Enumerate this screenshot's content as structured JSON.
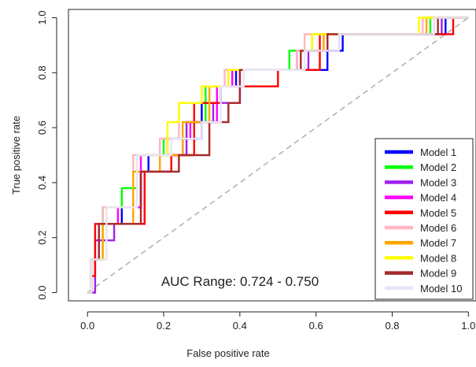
{
  "chart_data": {
    "type": "line",
    "title": "",
    "xlabel": "False positive rate",
    "ylabel": "True positive rate",
    "xlim": [
      -0.05,
      1.02
    ],
    "ylim": [
      -0.03,
      1.03
    ],
    "x_ticks": [
      0.0,
      0.2,
      0.4,
      0.6,
      0.8,
      1.0
    ],
    "y_ticks": [
      0.0,
      0.2,
      0.4,
      0.6,
      0.8,
      1.0
    ],
    "x_tick_labels": [
      "0.0",
      "0.2",
      "0.4",
      "0.6",
      "0.8",
      "1.0"
    ],
    "y_tick_labels": [
      "0.0",
      "0.2",
      "0.4",
      "0.6",
      "0.8",
      "1.0"
    ],
    "annotation": "AUC Range: 0.724 - 0.750",
    "grid": false,
    "legend_position": "bottom-right",
    "reference_line": {
      "x": [
        0,
        1
      ],
      "y": [
        0,
        1
      ],
      "style": "dashed",
      "color": "#b3b3b3"
    },
    "series": [
      {
        "name": "Model 1",
        "color": "#0000ff",
        "x": [
          0,
          0.01,
          0.01,
          0.03,
          0.03,
          0.09,
          0.09,
          0.14,
          0.14,
          0.16,
          0.16,
          0.25,
          0.25,
          0.3,
          0.3,
          0.35,
          0.35,
          0.39,
          0.39,
          0.63,
          0.63,
          0.67,
          0.67,
          0.94,
          0.94,
          1.0
        ],
        "y": [
          0,
          0,
          0.12,
          0.12,
          0.25,
          0.25,
          0.31,
          0.31,
          0.44,
          0.44,
          0.5,
          0.5,
          0.56,
          0.56,
          0.69,
          0.69,
          0.75,
          0.75,
          0.81,
          0.81,
          0.88,
          0.88,
          0.94,
          0.94,
          1.0,
          1.0
        ]
      },
      {
        "name": "Model 2",
        "color": "#00ff00",
        "x": [
          0,
          0.01,
          0.01,
          0.04,
          0.04,
          0.09,
          0.09,
          0.13,
          0.13,
          0.2,
          0.2,
          0.26,
          0.26,
          0.31,
          0.31,
          0.37,
          0.37,
          0.53,
          0.53,
          0.59,
          0.59,
          0.9,
          0.9,
          1.0
        ],
        "y": [
          0,
          0,
          0.12,
          0.12,
          0.31,
          0.31,
          0.38,
          0.38,
          0.5,
          0.5,
          0.56,
          0.56,
          0.62,
          0.62,
          0.75,
          0.75,
          0.81,
          0.81,
          0.88,
          0.88,
          0.94,
          0.94,
          1.0,
          1.0
        ]
      },
      {
        "name": "Model 3",
        "color": "#a020f0",
        "x": [
          0,
          0.02,
          0.02,
          0.07,
          0.07,
          0.15,
          0.15,
          0.22,
          0.22,
          0.26,
          0.26,
          0.33,
          0.33,
          0.4,
          0.4,
          0.58,
          0.58,
          0.66,
          0.66,
          0.93,
          0.93,
          1.0
        ],
        "y": [
          0,
          0,
          0.19,
          0.19,
          0.25,
          0.25,
          0.44,
          0.44,
          0.5,
          0.5,
          0.62,
          0.62,
          0.69,
          0.69,
          0.81,
          0.81,
          0.88,
          0.88,
          0.94,
          0.94,
          1.0,
          1.0
        ]
      },
      {
        "name": "Model 4",
        "color": "#ff00ff",
        "x": [
          0,
          0.01,
          0.01,
          0.03,
          0.03,
          0.08,
          0.08,
          0.14,
          0.14,
          0.21,
          0.21,
          0.27,
          0.27,
          0.34,
          0.34,
          0.38,
          0.38,
          0.55,
          0.55,
          0.63,
          0.63,
          0.91,
          0.91,
          1.0
        ],
        "y": [
          0,
          0,
          0.12,
          0.12,
          0.25,
          0.25,
          0.31,
          0.31,
          0.5,
          0.5,
          0.56,
          0.56,
          0.62,
          0.62,
          0.75,
          0.75,
          0.81,
          0.81,
          0.88,
          0.88,
          0.94,
          0.94,
          1.0,
          1.0
        ]
      },
      {
        "name": "Model 5",
        "color": "#ff0000",
        "x": [
          0,
          0.01,
          0.01,
          0.02,
          0.02,
          0.15,
          0.15,
          0.22,
          0.22,
          0.28,
          0.28,
          0.35,
          0.35,
          0.5,
          0.5,
          0.61,
          0.61,
          0.96,
          0.96,
          1.0
        ],
        "y": [
          0,
          0,
          0.06,
          0.06,
          0.25,
          0.25,
          0.44,
          0.44,
          0.5,
          0.5,
          0.69,
          0.69,
          0.75,
          0.75,
          0.81,
          0.81,
          0.94,
          0.94,
          1.0,
          1.0
        ]
      },
      {
        "name": "Model 6",
        "color": "#ffb6c1",
        "x": [
          0,
          0.01,
          0.01,
          0.04,
          0.04,
          0.12,
          0.12,
          0.19,
          0.19,
          0.24,
          0.24,
          0.3,
          0.3,
          0.36,
          0.36,
          0.55,
          0.55,
          0.57,
          0.57,
          0.88,
          0.88,
          1.0
        ],
        "y": [
          0,
          0,
          0.12,
          0.12,
          0.31,
          0.31,
          0.5,
          0.5,
          0.56,
          0.56,
          0.69,
          0.69,
          0.75,
          0.75,
          0.81,
          0.81,
          0.88,
          0.88,
          0.94,
          0.94,
          1.0,
          1.0
        ]
      },
      {
        "name": "Model 7",
        "color": "#ffa500",
        "x": [
          0,
          0.01,
          0.01,
          0.04,
          0.04,
          0.12,
          0.12,
          0.19,
          0.19,
          0.25,
          0.25,
          0.32,
          0.32,
          0.37,
          0.37,
          0.56,
          0.56,
          0.62,
          0.62,
          0.89,
          0.89,
          1.0
        ],
        "y": [
          0,
          0,
          0.12,
          0.12,
          0.25,
          0.25,
          0.44,
          0.44,
          0.5,
          0.5,
          0.62,
          0.62,
          0.75,
          0.75,
          0.81,
          0.81,
          0.88,
          0.88,
          0.94,
          0.94,
          1.0,
          1.0
        ]
      },
      {
        "name": "Model 8",
        "color": "#ffff00",
        "x": [
          0,
          0.01,
          0.01,
          0.05,
          0.05,
          0.13,
          0.13,
          0.21,
          0.21,
          0.24,
          0.24,
          0.3,
          0.3,
          0.37,
          0.37,
          0.56,
          0.56,
          0.59,
          0.59,
          0.87,
          0.87,
          1.0
        ],
        "y": [
          0,
          0,
          0.12,
          0.12,
          0.31,
          0.31,
          0.5,
          0.5,
          0.62,
          0.62,
          0.69,
          0.69,
          0.75,
          0.75,
          0.81,
          0.81,
          0.88,
          0.88,
          0.94,
          0.94,
          1.0,
          1.0
        ]
      },
      {
        "name": "Model 9",
        "color": "#a52a2a",
        "x": [
          0,
          0.01,
          0.01,
          0.03,
          0.03,
          0.14,
          0.14,
          0.24,
          0.24,
          0.32,
          0.32,
          0.37,
          0.37,
          0.4,
          0.4,
          0.56,
          0.56,
          0.63,
          0.63,
          0.92,
          0.92,
          1.0
        ],
        "y": [
          0,
          0,
          0.12,
          0.12,
          0.25,
          0.25,
          0.44,
          0.44,
          0.5,
          0.5,
          0.62,
          0.62,
          0.69,
          0.69,
          0.81,
          0.81,
          0.88,
          0.88,
          0.94,
          0.94,
          1.0,
          1.0
        ]
      },
      {
        "name": "Model 10",
        "color": "#e6e6fa",
        "x": [
          0,
          0.01,
          0.01,
          0.05,
          0.05,
          0.13,
          0.13,
          0.22,
          0.22,
          0.3,
          0.3,
          0.35,
          0.35,
          0.41,
          0.41,
          0.57,
          0.57,
          0.66,
          0.66,
          0.91,
          0.91,
          1.0
        ],
        "y": [
          0,
          0,
          0.12,
          0.12,
          0.31,
          0.31,
          0.5,
          0.5,
          0.56,
          0.56,
          0.62,
          0.62,
          0.75,
          0.75,
          0.81,
          0.81,
          0.88,
          0.88,
          0.94,
          0.94,
          1.0,
          1.0
        ]
      }
    ]
  }
}
